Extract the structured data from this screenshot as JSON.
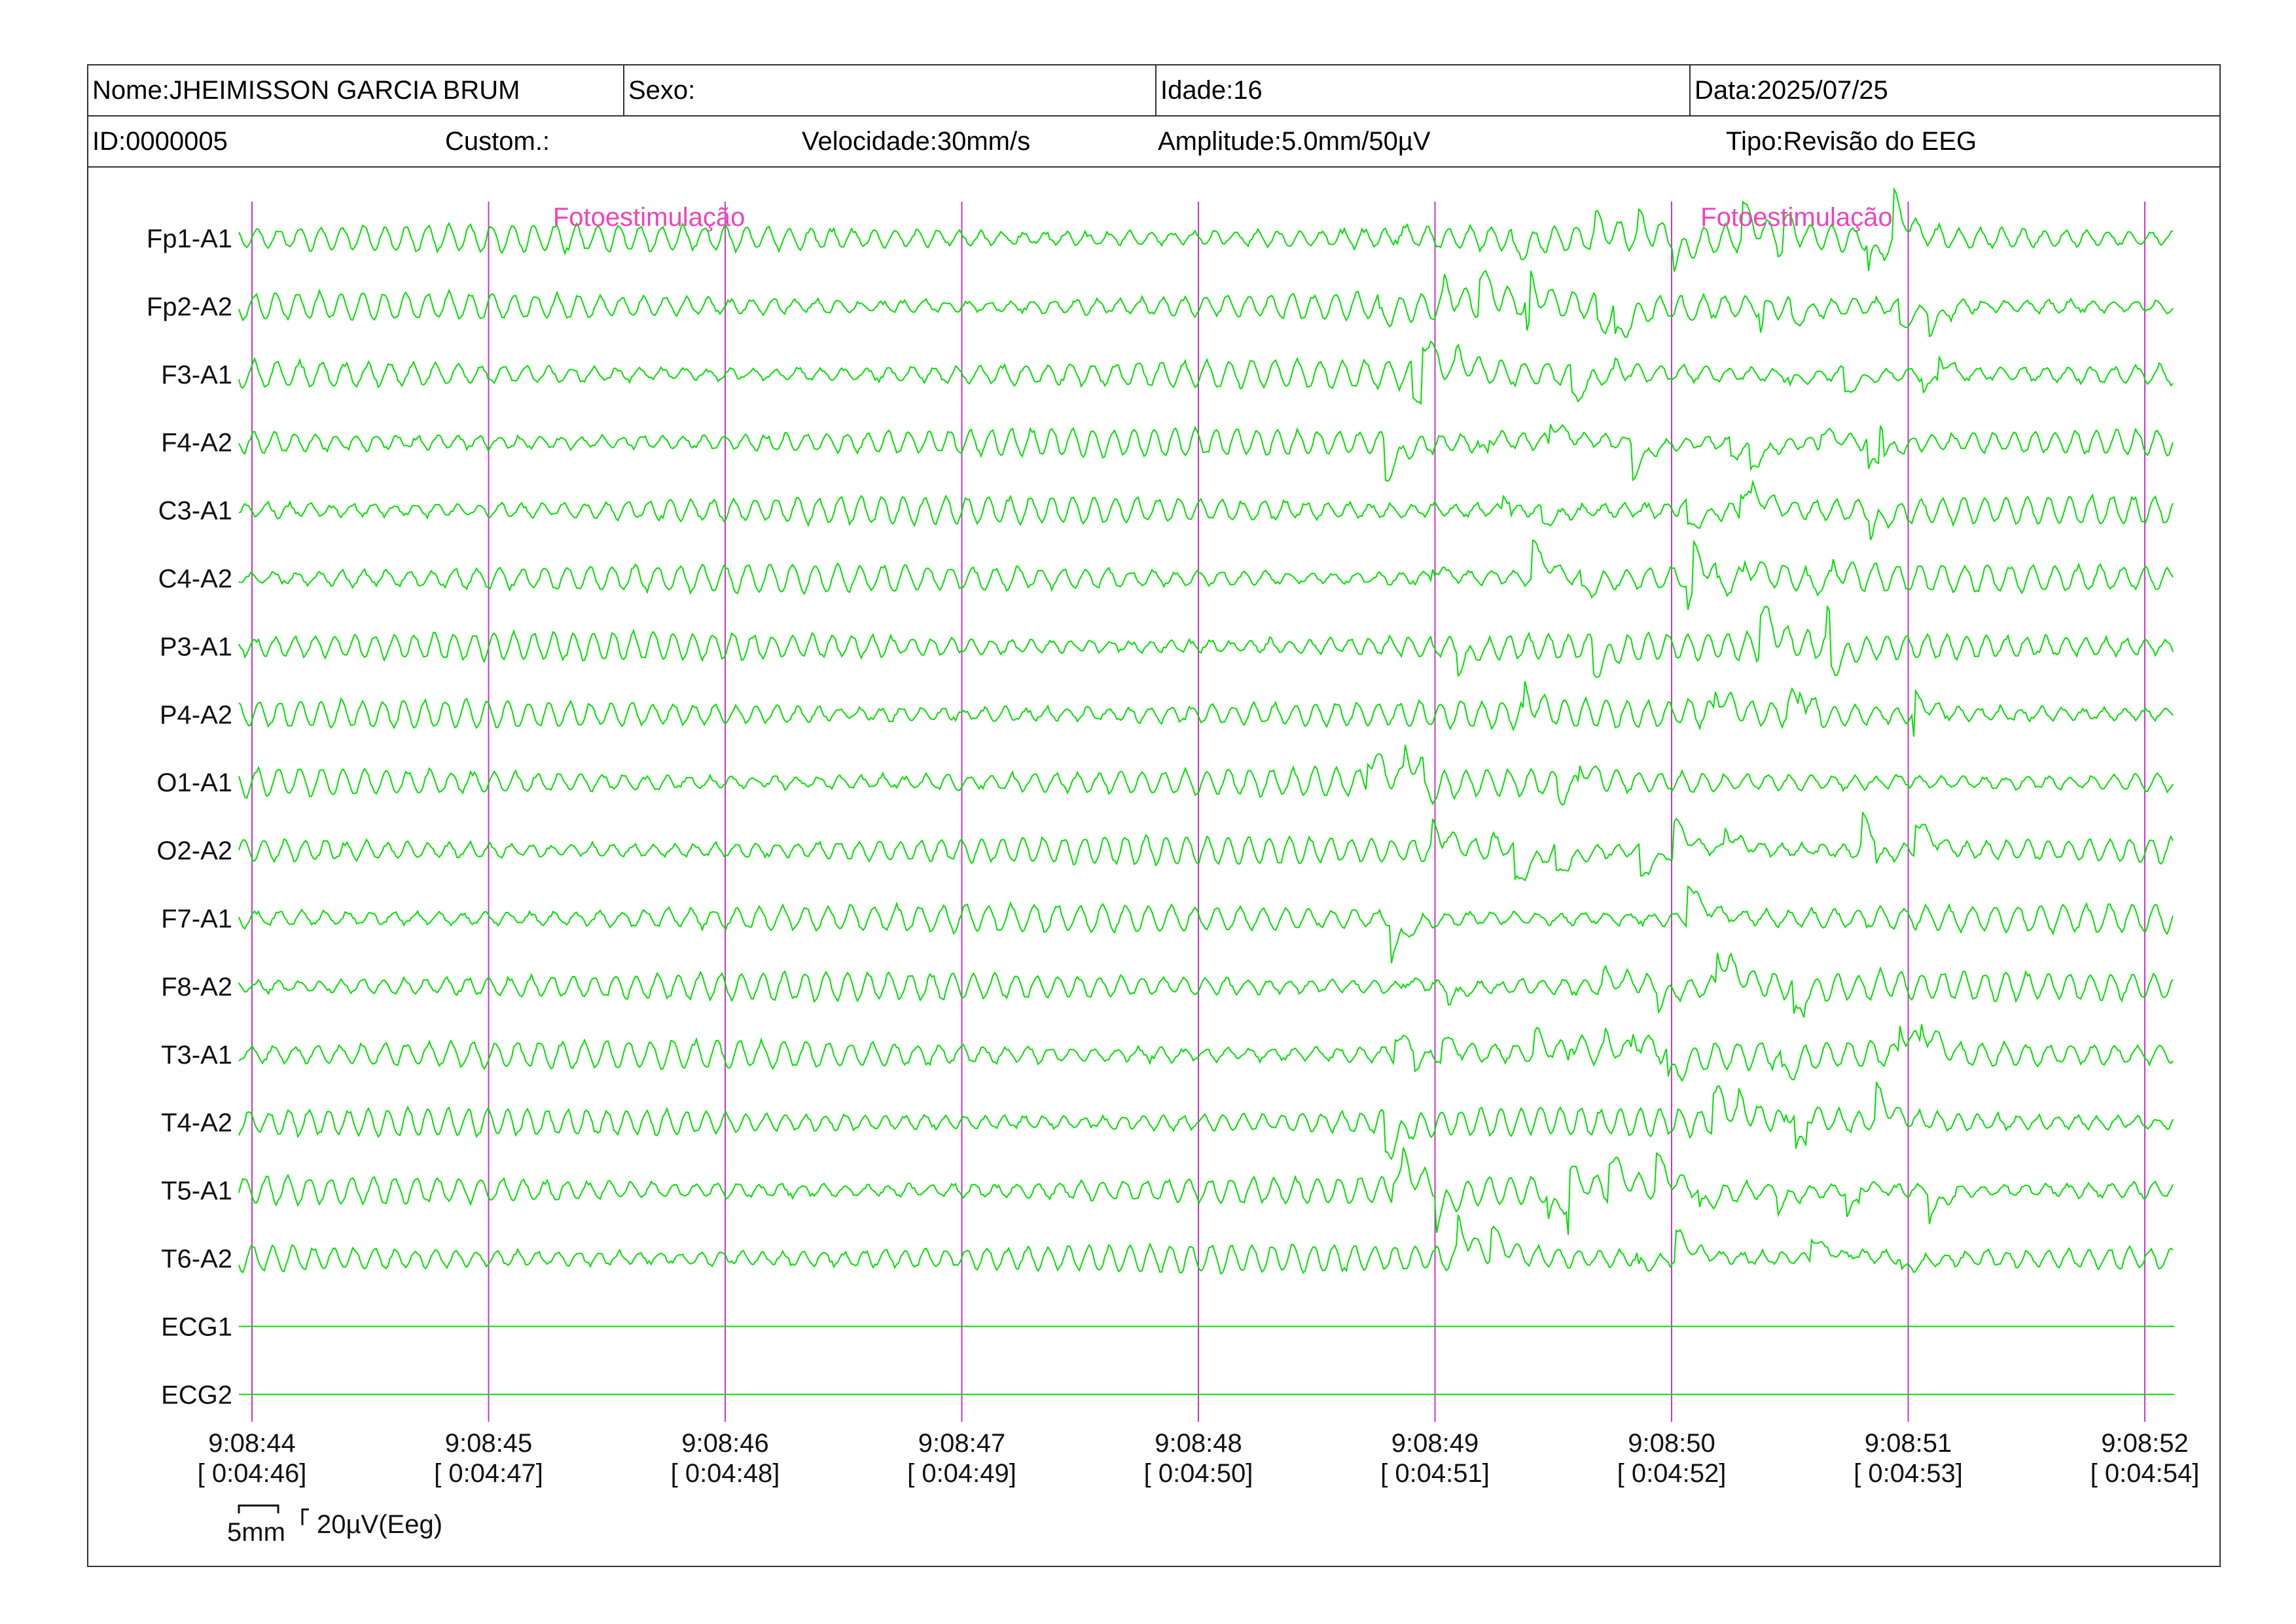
{
  "header": {
    "name": "Nome:JHEIMISSON GARCIA BRUM",
    "sex": "Sexo:",
    "age": "Idade:16",
    "date": "Data:2025/07/25",
    "id": "ID:0000005",
    "custom": "Custom.:",
    "speed": "Velocidade:30mm/s",
    "amplitude": "Amplitude:5.0mm/50µV",
    "type": "Tipo:Revisão do EEG"
  },
  "channels": [
    "Fp1-A1",
    "Fp2-A2",
    "F3-A1",
    "F4-A2",
    "C3-A1",
    "C4-A2",
    "P3-A1",
    "P4-A2",
    "O1-A1",
    "O2-A2",
    "F7-A1",
    "F8-A2",
    "T3-A1",
    "T4-A2",
    "T5-A1",
    "T6-A2",
    "ECG1",
    "ECG2"
  ],
  "flat_channels": [
    "ECG1",
    "ECG2"
  ],
  "time_marks": [
    {
      "clock": "9:08:44",
      "elapsed": "[ 0:04:46]"
    },
    {
      "clock": "9:08:45",
      "elapsed": "[ 0:04:47]"
    },
    {
      "clock": "9:08:46",
      "elapsed": "[ 0:04:48]"
    },
    {
      "clock": "9:08:47",
      "elapsed": "[ 0:04:49]"
    },
    {
      "clock": "9:08:48",
      "elapsed": "[ 0:04:50]"
    },
    {
      "clock": "9:08:49",
      "elapsed": "[ 0:04:51]"
    },
    {
      "clock": "9:08:50",
      "elapsed": "[ 0:04:52]"
    },
    {
      "clock": "9:08:51",
      "elapsed": "[ 0:04:53]"
    },
    {
      "clock": "9:08:52",
      "elapsed": "[ 0:04:54]"
    }
  ],
  "events": [
    {
      "label": "Fotoestimulação",
      "time": "9:08:45.25"
    },
    {
      "label": "Fotoestimulação",
      "time": "9:08:50.1"
    }
  ],
  "scale": {
    "time_label": "5mm",
    "amp_label": "20µV(Eeg)"
  },
  "colors": {
    "trace": "#00e000",
    "second_marker": "#cc33cc",
    "event_text": "#ee44bb",
    "border": "#333333"
  },
  "artifact_window": {
    "start_seconds": 4.7,
    "end_seconds": 7.2
  }
}
